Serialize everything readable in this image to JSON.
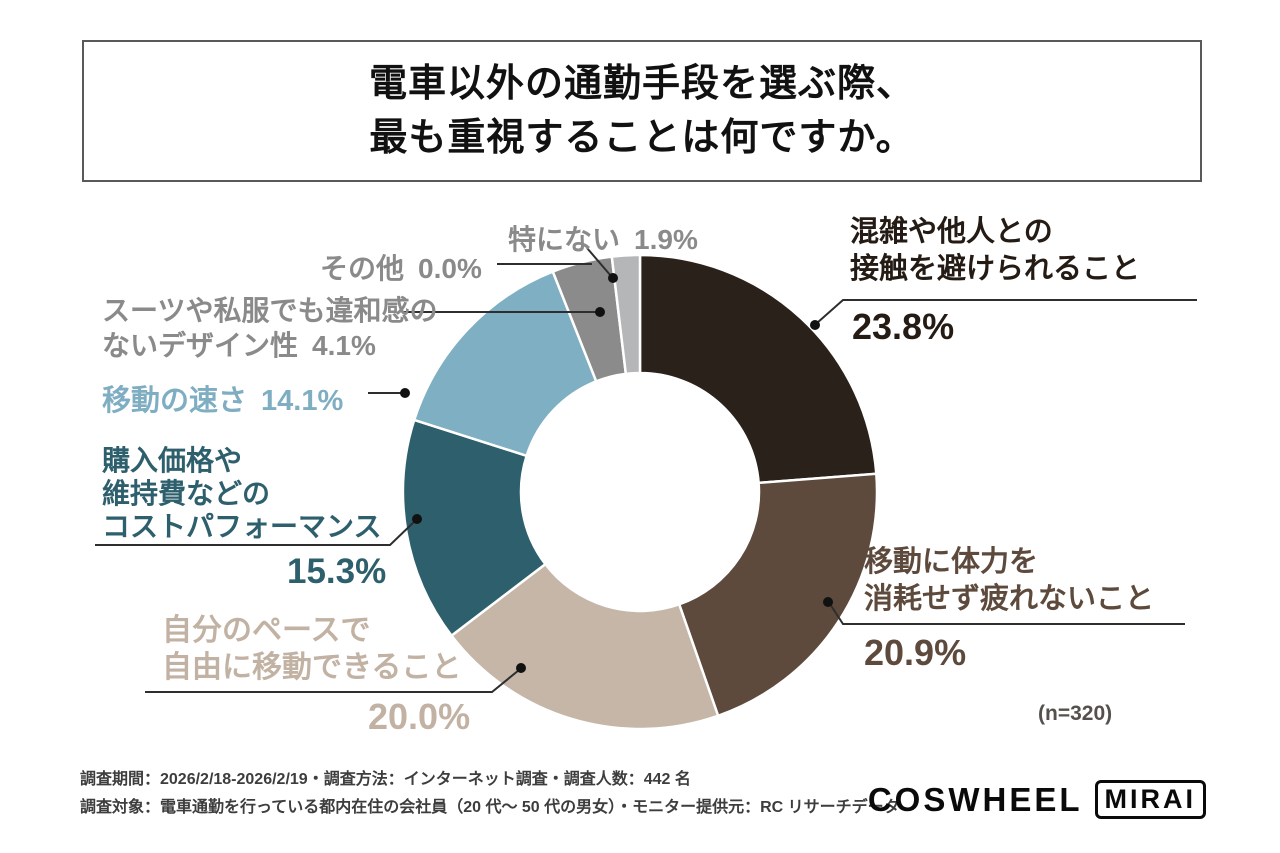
{
  "title": {
    "line1": "電車以外の通勤手段を選ぶ際、",
    "line2": "最も重視することは何ですか。"
  },
  "chart_data": {
    "type": "donut",
    "title": "電車以外の通勤手段を選ぶ際、最も重視することは何ですか。",
    "sample_size_label": "(n=320)",
    "start_angle_deg": 0,
    "direction": "clockwise",
    "inner_radius_ratio": 0.5,
    "segments": [
      {
        "label": "混雑や他人との接触を避けられること",
        "value": 23.8,
        "color": "#2b211b"
      },
      {
        "label": "移動に体力を消耗せず疲れないこと",
        "value": 20.9,
        "color": "#5d4a3c"
      },
      {
        "label": "自分のペースで自由に移動できること",
        "value": 20.0,
        "color": "#c5b6a8"
      },
      {
        "label": "購入価格や維持費などのコストパフォーマンス",
        "value": 15.3,
        "color": "#2e5f6d"
      },
      {
        "label": "移動の速さ",
        "value": 14.1,
        "color": "#7fafc3"
      },
      {
        "label": "スーツや私服でも違和感のないデザイン性",
        "value": 4.1,
        "color": "#8b8b8b"
      },
      {
        "label": "その他",
        "value": 0.0,
        "color": "#9a9a9a"
      },
      {
        "label": "特にない",
        "value": 1.9,
        "color": "#b5b6b8"
      }
    ]
  },
  "callouts": {
    "avoid_crowding": {
      "line1": "混雑や他人との",
      "line2": "接触を避けられること",
      "pct": "23.8%"
    },
    "no_fatigue": {
      "line1": "移動に体力を",
      "line2": "消耗せず疲れないこと",
      "pct": "20.9%"
    },
    "own_pace": {
      "line1": "自分のペースで",
      "line2": "自由に移動できること",
      "pct": "20.0%"
    },
    "cost_performance": {
      "line1": "購入価格や",
      "line2": "維持費などの",
      "line3": "コストパフォーマンス",
      "pct": "15.3%"
    },
    "speed": {
      "label": "移動の速さ",
      "pct": "14.1%"
    },
    "design": {
      "line1": "スーツや私服でも違和感の",
      "line2": "ないデザイン性",
      "pct": "4.1%"
    },
    "other": {
      "label": "その他",
      "pct": "0.0%"
    },
    "none_particular": {
      "label": "特にない",
      "pct": "1.9%"
    }
  },
  "sample_note": "(n=320)",
  "footer": {
    "line1": "調査期間：2026/2/18-2026/2/19・調査方法：インターネット調査・調査人数：442 名",
    "line2": "調査対象：電車通勤を行っている都内在住の会社員（20 代～ 50 代の男女）・モニター提供元：RC リサーチデータ"
  },
  "logo": {
    "brand": "COSWHEEL",
    "sub": "MIRAI"
  }
}
